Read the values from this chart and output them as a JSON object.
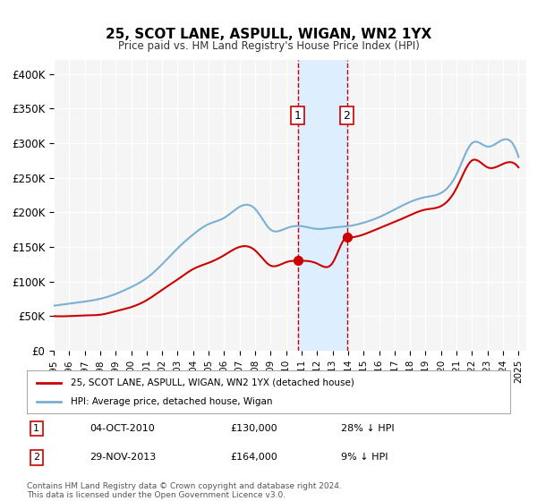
{
  "title": "25, SCOT LANE, ASPULL, WIGAN, WN2 1YX",
  "subtitle": "Price paid vs. HM Land Registry's House Price Index (HPI)",
  "xlabel": "",
  "ylabel": "",
  "background_color": "#ffffff",
  "plot_bg_color": "#f5f5f5",
  "grid_color": "#ffffff",
  "ylim": [
    0,
    420000
  ],
  "xlim_start": 1995.0,
  "xlim_end": 2025.5,
  "yticks": [
    0,
    50000,
    100000,
    150000,
    200000,
    250000,
    300000,
    350000,
    400000
  ],
  "ytick_labels": [
    "£0",
    "£50K",
    "£100K",
    "£150K",
    "£200K",
    "£250K",
    "£300K",
    "£350K",
    "£400K"
  ],
  "xticks": [
    1995,
    1996,
    1997,
    1998,
    1999,
    2000,
    2001,
    2002,
    2003,
    2004,
    2005,
    2006,
    2007,
    2008,
    2009,
    2010,
    2011,
    2012,
    2013,
    2014,
    2015,
    2016,
    2017,
    2018,
    2019,
    2020,
    2021,
    2022,
    2023,
    2024,
    2025
  ],
  "transaction1_date": 2010.75,
  "transaction1_price": 130000,
  "transaction1_label": "04-OCT-2010",
  "transaction1_price_str": "£130,000",
  "transaction1_hpi_str": "28% ↓ HPI",
  "transaction2_date": 2013.92,
  "transaction2_price": 164000,
  "transaction2_label": "29-NOV-2013",
  "transaction2_price_str": "£164,000",
  "transaction2_hpi_str": "9% ↓ HPI",
  "shade_start": 2010.75,
  "shade_end": 2013.92,
  "shade_color": "#ddeeff",
  "vline_color": "#cc0000",
  "red_line_color": "#cc0000",
  "blue_line_color": "#7ab0d4",
  "legend_label1": "25, SCOT LANE, ASPULL, WIGAN, WN2 1YX (detached house)",
  "legend_label2": "HPI: Average price, detached house, Wigan",
  "footer1": "Contains HM Land Registry data © Crown copyright and database right 2024.",
  "footer2": "This data is licensed under the Open Government Licence v3.0."
}
